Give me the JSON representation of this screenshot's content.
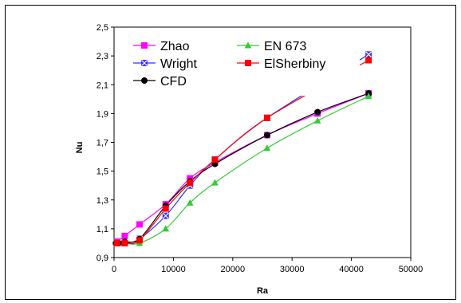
{
  "chart_data": {
    "type": "line",
    "xlabel": "Ra",
    "ylabel": "Nu",
    "xlim": [
      0,
      50000
    ],
    "ylim": [
      0.9,
      2.5
    ],
    "xticks": [
      0,
      10000,
      20000,
      30000,
      40000,
      50000
    ],
    "yticks": [
      0.9,
      1.1,
      1.3,
      1.5,
      1.7,
      1.9,
      2.1,
      2.3,
      2.5
    ],
    "ytick_labels": [
      "0,9",
      "1,1",
      "1,3",
      "1,5",
      "1,7",
      "1,9",
      "2,1",
      "2,3",
      "2,5"
    ],
    "grid": false,
    "legend_position": "top-left",
    "series": [
      {
        "name": "Zhao",
        "color": "#ff00ff",
        "marker": "square",
        "x": [
          500,
          1800,
          4300,
          8700,
          12800,
          17000,
          25800,
          34300,
          42900
        ],
        "y": [
          1.01,
          1.05,
          1.13,
          1.27,
          1.45,
          1.56,
          1.75,
          1.9,
          2.04
        ]
      },
      {
        "name": "Wright",
        "color": "#3333ff",
        "marker": "x-square",
        "x": [
          500,
          1800,
          4300,
          8700,
          12800,
          17000,
          25800,
          42900
        ],
        "y": [
          1.0,
          1.0,
          1.03,
          1.19,
          1.4,
          1.58,
          1.87,
          2.31
        ]
      },
      {
        "name": "CFD",
        "color": "#000000",
        "marker": "circle",
        "x": [
          300,
          800,
          1800,
          4300,
          8700,
          12800,
          17000,
          25800,
          34300,
          42900
        ],
        "y": [
          1.0,
          1.0,
          1.01,
          1.03,
          1.26,
          1.43,
          1.55,
          1.75,
          1.91,
          2.04
        ]
      },
      {
        "name": "EN 673",
        "color": "#33cc33",
        "marker": "triangle",
        "x": [
          500,
          1800,
          4300,
          8700,
          12800,
          17000,
          25800,
          34300,
          42900
        ],
        "y": [
          1.0,
          1.0,
          1.0,
          1.1,
          1.28,
          1.42,
          1.66,
          1.85,
          2.02
        ]
      },
      {
        "name": "ElSherbiny",
        "color": "#ff0000",
        "marker": "square",
        "x": [
          500,
          1800,
          4300,
          8700,
          12800,
          17000,
          25800,
          42900
        ],
        "y": [
          1.0,
          1.0,
          1.02,
          1.24,
          1.42,
          1.58,
          1.87,
          2.27
        ]
      }
    ]
  }
}
